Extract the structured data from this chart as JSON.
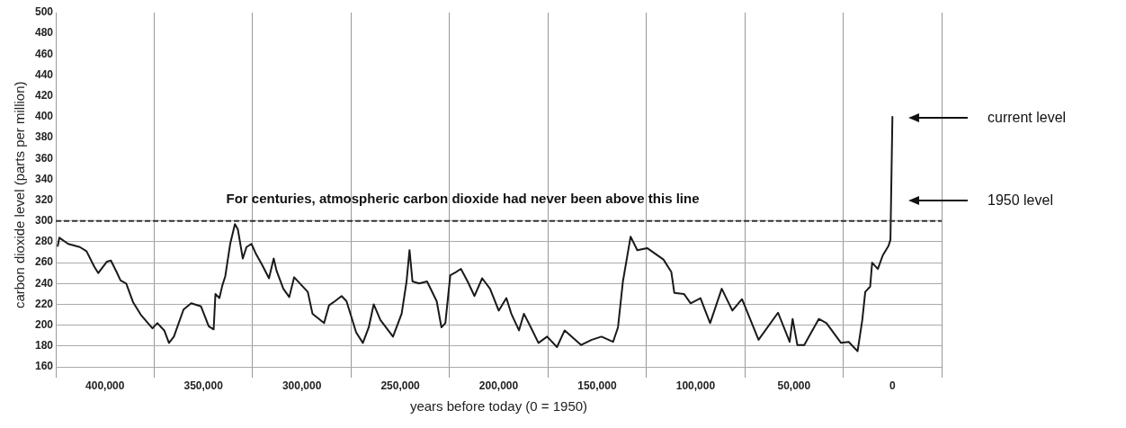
{
  "chart_data": {
    "type": "line",
    "xlabel": "years before today (0 = 1950)",
    "ylabel": "carbon dioxide level (parts per million)",
    "x": [
      424000,
      423200,
      418700,
      412800,
      409400,
      405400,
      403400,
      399000,
      397000,
      394100,
      392100,
      389200,
      386700,
      385700,
      381800,
      375900,
      373400,
      369900,
      367500,
      365000,
      360100,
      356200,
      351200,
      347300,
      344800,
      343900,
      341900,
      340400,
      338900,
      336400,
      334000,
      332500,
      330000,
      328100,
      325600,
      323200,
      320200,
      316700,
      314300,
      312800,
      309400,
      306400,
      303900,
      297000,
      294600,
      288700,
      286200,
      283200,
      279800,
      277300,
      272400,
      269000,
      266000,
      263500,
      260100,
      253700,
      249300,
      246800,
      245300,
      243800,
      240400,
      236400,
      231500,
      229100,
      227100,
      224600,
      221700,
      219200,
      215800,
      212300,
      208400,
      204400,
      200000,
      196100,
      193600,
      189700,
      187200,
      183700,
      179800,
      175400,
      170400,
      166500,
      158100,
      152700,
      147800,
      141900,
      139400,
      136900,
      133000,
      129600,
      124600,
      116300,
      112300,
      110800,
      105900,
      102500,
      97500,
      95100,
      92600,
      86700,
      81300,
      76400,
      68000,
      58100,
      52200,
      50700,
      48300,
      44800,
      37400,
      33500,
      26100,
      22200,
      17700,
      15300,
      13800,
      11300,
      10300,
      7400,
      4900,
      2000,
      1000,
      0
    ],
    "series": [
      {
        "color": "#1a1a1a",
        "values": [
          276,
          284,
          278,
          275,
          271,
          256,
          250,
          261,
          262,
          251,
          243,
          240,
          227,
          222,
          210,
          197,
          202,
          195,
          183,
          189,
          215,
          221,
          218,
          199,
          196,
          230,
          226,
          238,
          247,
          278,
          297,
          292,
          264,
          275,
          278,
          268,
          258,
          245,
          264,
          252,
          235,
          227,
          246,
          232,
          211,
          202,
          219,
          223,
          228,
          223,
          193,
          183,
          198,
          220,
          205,
          189,
          211,
          242,
          272,
          242,
          240,
          242,
          223,
          198,
          202,
          248,
          251,
          254,
          242,
          228,
          245,
          235,
          214,
          226,
          211,
          195,
          211,
          198,
          183,
          189,
          179,
          195,
          181,
          186,
          189,
          184,
          198,
          242,
          285,
          272,
          274,
          263,
          251,
          231,
          230,
          221,
          226,
          214,
          202,
          235,
          214,
          225,
          186,
          212,
          184,
          206,
          181,
          181,
          206,
          202,
          183,
          184,
          175,
          205,
          232,
          237,
          260,
          254,
          267,
          276,
          282,
          400
        ]
      }
    ],
    "xlim": [
      425000,
      -25000
    ],
    "xticks": [
      {
        "value": 425000,
        "label": null
      },
      {
        "value": 400000,
        "label": "400,000"
      },
      {
        "value": 375000,
        "label": null
      },
      {
        "value": 350000,
        "label": "350,000"
      },
      {
        "value": 325000,
        "label": null
      },
      {
        "value": 300000,
        "label": "300,000"
      },
      {
        "value": 275000,
        "label": null
      },
      {
        "value": 250000,
        "label": "250,000"
      },
      {
        "value": 225000,
        "label": null
      },
      {
        "value": 200000,
        "label": "200,000"
      },
      {
        "value": 175000,
        "label": null
      },
      {
        "value": 150000,
        "label": "150,000"
      },
      {
        "value": 125000,
        "label": null
      },
      {
        "value": 100000,
        "label": "100,000"
      },
      {
        "value": 75000,
        "label": null
      },
      {
        "value": 50000,
        "label": "50,000"
      },
      {
        "value": 25000,
        "label": null
      },
      {
        "value": 0,
        "label": "0"
      },
      {
        "value": -25000,
        "label": null
      }
    ],
    "ylim": [
      150,
      500
    ],
    "yticks": [
      160,
      180,
      200,
      220,
      240,
      260,
      280,
      300,
      320,
      340,
      360,
      380,
      400,
      420,
      440,
      460,
      480,
      500
    ],
    "grid": true,
    "marker": "none",
    "line_style": "solid",
    "ref_lines": [
      {
        "axis": "y",
        "value": 300,
        "label": "For centuries, atmospheric carbon dioxide had never been above this line",
        "color": "#333333",
        "line_style": "dashed"
      }
    ],
    "annotations": [
      "current level",
      "1950 level"
    ]
  }
}
